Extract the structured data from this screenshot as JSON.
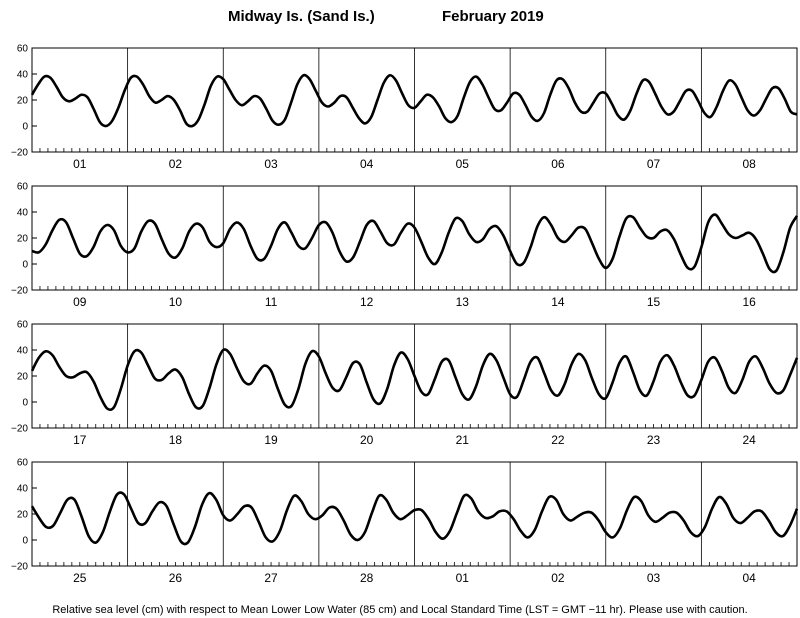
{
  "title": {
    "station": "Midway Is. (Sand Is.)",
    "period": "February   2019"
  },
  "footnote": "Relative sea level (cm) with respect to Mean Lower Low Water (85 cm) and Local Standard Time (LST = GMT −11 hr). Please use with caution.",
  "chart_data": {
    "type": "line",
    "title": "Midway Is. (Sand Is.)   February 2019",
    "ylabel": "",
    "xlabel": "",
    "ylim": [
      -20,
      60
    ],
    "yticks": [
      "60",
      "40",
      "20",
      "0",
      "−20"
    ],
    "days_per_panel": 8,
    "grid": "vertical day separators",
    "panels": [
      {
        "day_labels": [
          "01",
          "02",
          "03",
          "04",
          "05",
          "06",
          "07",
          "08"
        ],
        "series": [
          {
            "values": [
              24,
              32,
              38,
              37,
              30,
              22,
              19,
              21,
              24,
              22,
              13,
              3,
              0,
              4,
              14,
              27,
              37,
              38,
              32,
              23,
              18,
              20,
              23,
              20,
              12,
              2,
              0,
              5,
              17,
              31,
              38,
              36,
              28,
              20,
              16,
              19,
              23,
              21,
              13,
              4,
              1,
              5,
              18,
              32,
              39,
              36,
              27,
              18,
              15,
              18,
              23,
              22,
              14,
              6,
              2,
              7,
              20,
              33,
              39,
              35,
              25,
              16,
              14,
              19,
              24,
              22,
              15,
              6,
              3,
              8,
              22,
              34,
              38,
              32,
              22,
              13,
              12,
              18,
              25,
              24,
              16,
              7,
              4,
              10,
              24,
              35,
              36,
              29,
              18,
              11,
              11,
              18,
              25,
              25,
              17,
              8,
              5,
              12,
              25,
              35,
              34,
              25,
              15,
              9,
              11,
              19,
              27,
              27,
              19,
              10,
              7,
              15,
              27,
              35,
              32,
              22,
              12,
              8,
              12,
              21,
              29,
              29,
              21,
              11,
              9
            ]
          }
        ]
      },
      {
        "day_labels": [
          "09",
          "10",
          "11",
          "12",
          "13",
          "14",
          "15",
          "16"
        ],
        "series": [
          {
            "values": [
              10,
              9,
              15,
              26,
              34,
              32,
              20,
              8,
              6,
              13,
              25,
              30,
              26,
              14,
              9,
              12,
              25,
              33,
              31,
              19,
              8,
              5,
              12,
              25,
              31,
              28,
              17,
              13,
              16,
              27,
              32,
              27,
              14,
              4,
              4,
              14,
              27,
              32,
              24,
              14,
              12,
              20,
              30,
              32,
              24,
              10,
              2,
              5,
              17,
              30,
              33,
              25,
              16,
              15,
              24,
              31,
              28,
              17,
              5,
              0,
              9,
              24,
              35,
              33,
              23,
              17,
              19,
              27,
              29,
              22,
              10,
              0,
              1,
              13,
              29,
              36,
              30,
              20,
              17,
              22,
              28,
              27,
              16,
              4,
              -3,
              4,
              21,
              35,
              36,
              28,
              21,
              20,
              25,
              26,
              19,
              7,
              -3,
              -2,
              13,
              32,
              38,
              31,
              23,
              20,
              22,
              24,
              19,
              8,
              -4,
              -5,
              9,
              28,
              37
            ]
          }
        ]
      },
      {
        "day_labels": [
          "17",
          "18",
          "19",
          "20",
          "21",
          "22",
          "23",
          "24"
        ],
        "series": [
          {
            "values": [
              24,
              34,
              39,
              36,
              27,
              20,
              19,
              22,
              23,
              16,
              4,
              -5,
              -4,
              10,
              28,
              39,
              38,
              28,
              18,
              17,
              22,
              25,
              19,
              6,
              -4,
              -3,
              11,
              29,
              40,
              37,
              26,
              16,
              14,
              22,
              28,
              24,
              10,
              -2,
              -3,
              10,
              29,
              39,
              35,
              22,
              11,
              9,
              19,
              30,
              29,
              15,
              2,
              -1,
              10,
              28,
              38,
              33,
              20,
              8,
              6,
              18,
              31,
              32,
              19,
              6,
              2,
              12,
              28,
              37,
              32,
              19,
              6,
              4,
              17,
              31,
              34,
              22,
              9,
              5,
              14,
              29,
              37,
              32,
              18,
              6,
              3,
              15,
              30,
              35,
              23,
              9,
              5,
              16,
              31,
              36,
              28,
              15,
              5,
              5,
              17,
              31,
              34,
              24,
              11,
              7,
              17,
              31,
              35,
              26,
              14,
              7,
              9,
              21,
              34
            ]
          }
        ]
      },
      {
        "day_labels": [
          "25",
          "26",
          "27",
          "28",
          "01",
          "02",
          "03",
          "04"
        ],
        "series": [
          {
            "values": [
              26,
              17,
              10,
              11,
              21,
              31,
              31,
              18,
              3,
              -2,
              6,
              22,
              35,
              35,
              24,
              13,
              13,
              22,
              29,
              26,
              12,
              -1,
              -2,
              10,
              27,
              36,
              31,
              19,
              15,
              20,
              26,
              25,
              14,
              2,
              -1,
              7,
              23,
              34,
              30,
              20,
              16,
              19,
              25,
              24,
              15,
              4,
              0,
              6,
              21,
              34,
              31,
              21,
              16,
              19,
              23,
              23,
              16,
              6,
              1,
              7,
              21,
              34,
              32,
              22,
              17,
              18,
              22,
              22,
              16,
              7,
              2,
              8,
              22,
              33,
              31,
              20,
              15,
              18,
              21,
              21,
              15,
              6,
              2,
              9,
              23,
              33,
              30,
              19,
              14,
              17,
              21,
              21,
              15,
              6,
              3,
              10,
              24,
              33,
              28,
              17,
              13,
              17,
              22,
              22,
              15,
              6,
              3,
              11,
              24
            ]
          }
        ]
      }
    ]
  }
}
